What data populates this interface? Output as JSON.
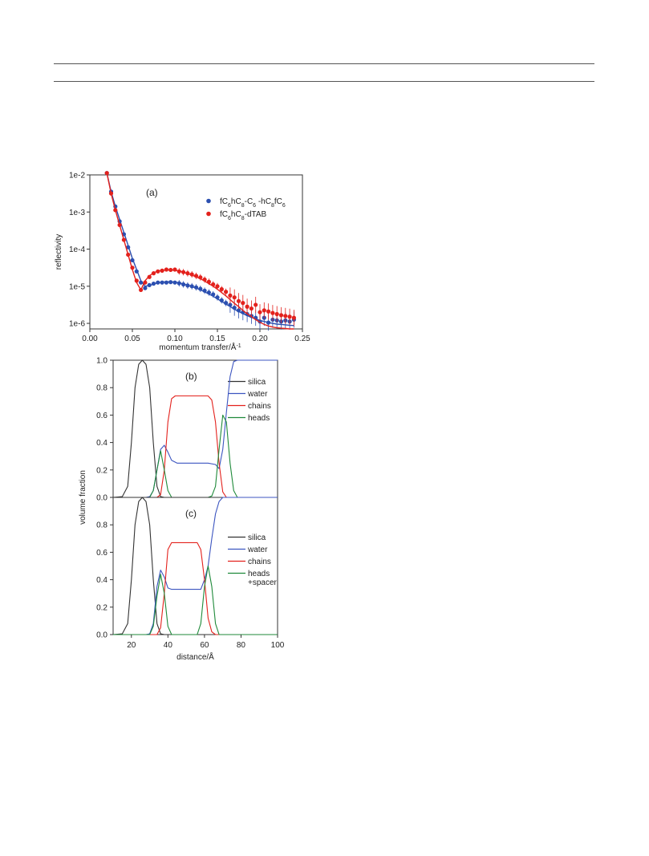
{
  "chart_data": [
    {
      "type": "scatter",
      "panel_label": "(a)",
      "xlabel": "momentum transfer/Å",
      "xlabel_sup": "-1",
      "ylabel": "reflectivity",
      "y_scale": "log",
      "xlim": [
        0.0,
        0.25
      ],
      "ylim_log10": [
        -6.15,
        -2.0
      ],
      "x_ticks": [
        0.0,
        0.05,
        0.1,
        0.15,
        0.2,
        0.25
      ],
      "x_tick_labels": [
        "0.00",
        "0.05",
        "0.10",
        "0.15",
        "0.20",
        "0.25"
      ],
      "y_ticks_log10": [
        -2,
        -3,
        -4,
        -5,
        -6
      ],
      "y_tick_labels": [
        "1e-2",
        "1e-3",
        "1e-4",
        "1e-5",
        "1e-6"
      ],
      "legend_position": "top-right",
      "series": [
        {
          "name_parts": [
            [
              "fC",
              ""
            ],
            [
              "6",
              "sub"
            ],
            [
              "hC",
              ""
            ],
            [
              "8",
              "sub"
            ],
            [
              "-C",
              ""
            ],
            [
              "6",
              "sub"
            ],
            [
              " -hC",
              ""
            ],
            [
              "8",
              "sub"
            ],
            [
              "fC",
              ""
            ],
            [
              "6",
              "sub"
            ]
          ],
          "color": "#2b4fb0",
          "x": [
            0.02,
            0.025,
            0.03,
            0.035,
            0.04,
            0.045,
            0.05,
            0.055,
            0.06,
            0.065,
            0.07,
            0.075,
            0.08,
            0.085,
            0.09,
            0.095,
            0.1,
            0.105,
            0.11,
            0.115,
            0.12,
            0.125,
            0.13,
            0.135,
            0.14,
            0.145,
            0.15,
            0.155,
            0.16,
            0.165,
            0.17,
            0.175,
            0.18,
            0.185,
            0.19,
            0.195,
            0.2,
            0.205,
            0.21,
            0.215,
            0.22,
            0.225,
            0.23,
            0.235,
            0.24
          ],
          "y_log10": [
            -1.95,
            -2.45,
            -2.85,
            -3.25,
            -3.6,
            -3.95,
            -4.3,
            -4.6,
            -4.9,
            -5.05,
            -4.97,
            -4.93,
            -4.9,
            -4.9,
            -4.9,
            -4.89,
            -4.9,
            -4.92,
            -4.95,
            -4.98,
            -5.0,
            -5.03,
            -5.07,
            -5.12,
            -5.17,
            -5.22,
            -5.3,
            -5.38,
            -5.45,
            -5.5,
            -5.58,
            -5.65,
            -5.7,
            -5.75,
            -5.8,
            -5.85,
            -5.95,
            -5.85,
            -5.98,
            -5.9,
            -5.92,
            -5.95,
            -5.92,
            -5.95,
            -5.9
          ],
          "fit_y_log10": [
            -1.95,
            -2.45,
            -2.85,
            -3.2,
            -3.55,
            -3.9,
            -4.25,
            -4.55,
            -4.85,
            -5.0,
            -4.98,
            -4.94,
            -4.91,
            -4.89,
            -4.88,
            -4.88,
            -4.89,
            -4.91,
            -4.94,
            -4.97,
            -5.01,
            -5.05,
            -5.1,
            -5.15,
            -5.21,
            -5.27,
            -5.34,
            -5.41,
            -5.48,
            -5.55,
            -5.62,
            -5.68,
            -5.74,
            -5.79,
            -5.84,
            -5.88,
            -5.92,
            -5.95,
            -5.98,
            -6.0,
            -6.02,
            -6.03,
            -6.04,
            -6.05,
            -6.06
          ]
        },
        {
          "name_parts": [
            [
              "fC",
              ""
            ],
            [
              "6",
              "sub"
            ],
            [
              "hC",
              ""
            ],
            [
              "8",
              "sub"
            ],
            [
              "-dTAB",
              ""
            ]
          ],
          "color": "#e3211c",
          "x": [
            0.02,
            0.025,
            0.03,
            0.035,
            0.04,
            0.045,
            0.05,
            0.055,
            0.06,
            0.065,
            0.07,
            0.075,
            0.08,
            0.085,
            0.09,
            0.095,
            0.1,
            0.105,
            0.11,
            0.115,
            0.12,
            0.125,
            0.13,
            0.135,
            0.14,
            0.145,
            0.15,
            0.155,
            0.16,
            0.165,
            0.17,
            0.175,
            0.18,
            0.185,
            0.19,
            0.195,
            0.2,
            0.205,
            0.21,
            0.215,
            0.22,
            0.225,
            0.23,
            0.235,
            0.24
          ],
          "y_log10": [
            -1.95,
            -2.5,
            -2.95,
            -3.35,
            -3.75,
            -4.15,
            -4.5,
            -4.85,
            -5.1,
            -4.9,
            -4.75,
            -4.65,
            -4.6,
            -4.58,
            -4.55,
            -4.56,
            -4.55,
            -4.6,
            -4.62,
            -4.65,
            -4.68,
            -4.72,
            -4.76,
            -4.82,
            -4.88,
            -4.95,
            -5.0,
            -5.08,
            -5.15,
            -5.25,
            -5.3,
            -5.4,
            -5.45,
            -5.55,
            -5.6,
            -5.5,
            -5.7,
            -5.65,
            -5.68,
            -5.72,
            -5.75,
            -5.78,
            -5.8,
            -5.82,
            -5.85
          ],
          "fit_y_log10": [
            -1.95,
            -2.5,
            -2.95,
            -3.35,
            -3.75,
            -4.15,
            -4.55,
            -4.9,
            -5.1,
            -4.85,
            -4.72,
            -4.64,
            -4.59,
            -4.57,
            -4.56,
            -4.56,
            -4.57,
            -4.59,
            -4.62,
            -4.66,
            -4.7,
            -4.75,
            -4.8,
            -4.86,
            -4.93,
            -5.0,
            -5.08,
            -5.17,
            -5.26,
            -5.36,
            -5.46,
            -5.55,
            -5.65,
            -5.74,
            -5.82,
            -5.9,
            -5.97,
            -6.03,
            -6.07,
            -6.1,
            -6.12,
            -6.13,
            -6.14,
            -6.15,
            -6.15
          ]
        }
      ]
    },
    {
      "type": "line",
      "panel_label": "(b)",
      "xlim": [
        10,
        100
      ],
      "ylim": [
        0,
        1.0
      ],
      "y_ticks": [
        0.0,
        0.2,
        0.4,
        0.6,
        0.8,
        1.0
      ],
      "y_tick_labels": [
        "0.0",
        "0.2",
        "0.4",
        "0.6",
        "0.8",
        "1.0"
      ],
      "legend_position": "top-right",
      "series": [
        {
          "name": "silica",
          "color": "#333333",
          "x": [
            10,
            15,
            18,
            20,
            22,
            24,
            26,
            28,
            30,
            32,
            34,
            36,
            38,
            100
          ],
          "y": [
            0,
            0.005,
            0.08,
            0.4,
            0.8,
            0.97,
            1.0,
            0.97,
            0.8,
            0.4,
            0.08,
            0.005,
            0,
            0
          ]
        },
        {
          "name": "water",
          "color": "#3c55c0",
          "x": [
            10,
            28,
            30,
            32,
            34,
            36,
            38,
            40,
            42,
            45,
            55,
            62,
            66,
            68,
            70,
            72,
            74,
            76,
            78,
            100
          ],
          "y": [
            0,
            0,
            0.005,
            0.05,
            0.2,
            0.35,
            0.38,
            0.33,
            0.27,
            0.25,
            0.25,
            0.25,
            0.24,
            0.21,
            0.35,
            0.62,
            0.88,
            0.99,
            1.0,
            1.0
          ]
        },
        {
          "name": "chains",
          "color": "#e3211c",
          "x": [
            10,
            34,
            36,
            38,
            40,
            42,
            44,
            58,
            62,
            64,
            66,
            68,
            70,
            72,
            100
          ],
          "y": [
            0,
            0,
            0.02,
            0.2,
            0.55,
            0.72,
            0.74,
            0.74,
            0.74,
            0.71,
            0.55,
            0.25,
            0.04,
            0,
            0
          ]
        },
        {
          "name": "heads",
          "color": "#1f8a3a",
          "x": [
            10,
            30,
            32,
            34,
            36,
            38,
            40,
            42,
            62,
            64,
            66,
            68,
            70,
            72,
            74,
            76,
            78,
            100
          ],
          "y": [
            0,
            0,
            0.05,
            0.2,
            0.34,
            0.2,
            0.05,
            0,
            0,
            0.01,
            0.08,
            0.35,
            0.6,
            0.55,
            0.25,
            0.05,
            0,
            0
          ]
        }
      ]
    },
    {
      "type": "line",
      "panel_label": "(c)",
      "xlabel": "distance/Å",
      "ylabel": "volume fraction",
      "xlim": [
        10,
        100
      ],
      "ylim": [
        0,
        1.0
      ],
      "x_ticks": [
        20,
        40,
        60,
        80,
        100
      ],
      "x_tick_labels": [
        "20",
        "40",
        "60",
        "80",
        "100"
      ],
      "y_ticks": [
        0.0,
        0.2,
        0.4,
        0.6,
        0.8
      ],
      "y_tick_labels": [
        "0.0",
        "0.2",
        "0.4",
        "0.6",
        "0.8"
      ],
      "legend_position": "right",
      "series": [
        {
          "name": "silica",
          "color": "#333333",
          "x": [
            10,
            15,
            18,
            20,
            22,
            24,
            26,
            28,
            30,
            32,
            34,
            36,
            38,
            100
          ],
          "y": [
            0,
            0.005,
            0.08,
            0.4,
            0.8,
            0.97,
            1.0,
            0.97,
            0.8,
            0.4,
            0.08,
            0.005,
            0,
            0
          ]
        },
        {
          "name": "water",
          "color": "#3c55c0",
          "x": [
            10,
            28,
            30,
            32,
            34,
            36,
            38,
            40,
            42,
            55,
            58,
            60,
            62,
            64,
            66,
            68,
            70,
            100
          ],
          "y": [
            0,
            0,
            0.005,
            0.08,
            0.35,
            0.47,
            0.42,
            0.34,
            0.33,
            0.33,
            0.33,
            0.4,
            0.5,
            0.7,
            0.88,
            0.97,
            1.0,
            1.0
          ]
        },
        {
          "name": "chains",
          "color": "#e3211c",
          "x": [
            10,
            34,
            36,
            38,
            40,
            42,
            56,
            58,
            60,
            62,
            64,
            66,
            100
          ],
          "y": [
            0,
            0,
            0.05,
            0.3,
            0.62,
            0.67,
            0.67,
            0.62,
            0.4,
            0.12,
            0.02,
            0,
            0
          ]
        },
        {
          "name": "heads\n+spacer",
          "name_lines": [
            "heads",
            "+spacer"
          ],
          "color": "#1f8a3a",
          "x": [
            10,
            30,
            32,
            34,
            36,
            38,
            40,
            42,
            56,
            58,
            60,
            62,
            64,
            66,
            68,
            100
          ],
          "y": [
            0,
            0,
            0.06,
            0.28,
            0.44,
            0.3,
            0.06,
            0,
            0,
            0.08,
            0.35,
            0.5,
            0.35,
            0.08,
            0,
            0
          ]
        }
      ]
    }
  ]
}
